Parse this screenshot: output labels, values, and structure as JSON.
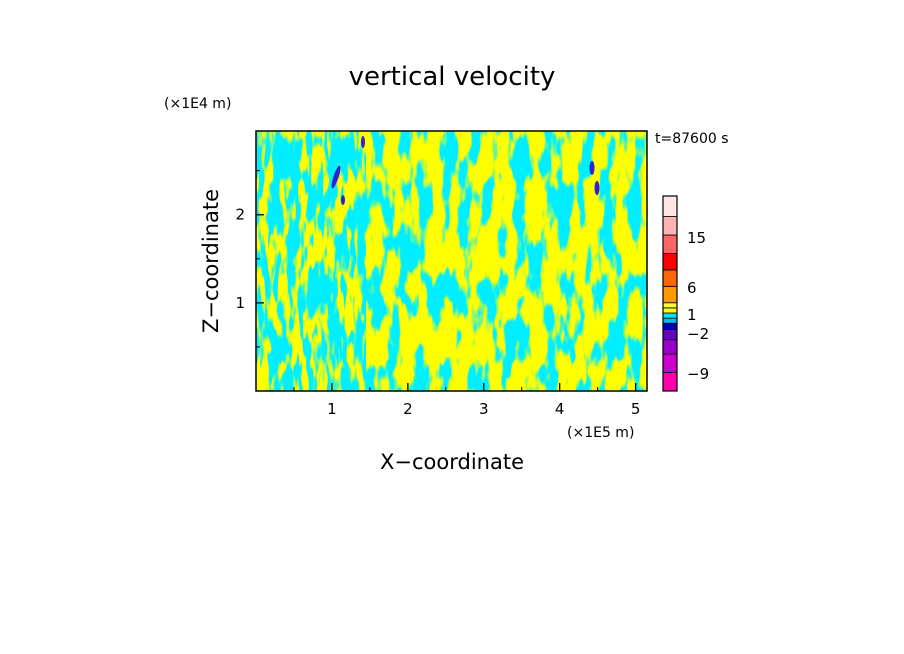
{
  "chart_data": {
    "type": "heatmap",
    "title": "vertical velocity",
    "xlabel": "X−coordinate",
    "ylabel": "Z−coordinate",
    "x_scale_label": "(×1E5 m)",
    "y_scale_label": "(×1E4 m)",
    "time_label": "t=87600 s",
    "xlim": [
      0,
      5.15
    ],
    "ylim": [
      0,
      2.95
    ],
    "x_ticks": [
      "1",
      "2",
      "3",
      "4",
      "5"
    ],
    "x_tick_values": [
      1,
      2,
      3,
      4,
      5
    ],
    "y_ticks": [
      "1",
      "2"
    ],
    "y_tick_values": [
      1,
      2
    ],
    "colorbar": {
      "levels": [
        "15",
        "6",
        "1",
        "−2",
        "−9"
      ],
      "level_values": [
        15,
        6,
        1,
        -2,
        -9
      ],
      "colors": [
        "#ff00aa",
        "#cc00cc",
        "#9900cc",
        "#6600cc",
        "#0000bb",
        "#00b8ff",
        "#00e5ff",
        "#ffff00",
        "#ffff33",
        "#ff9900",
        "#ff6600",
        "#ff0000",
        "#ff6666",
        "#ffb3b3",
        "#ffe6e6"
      ]
    },
    "dominant_colors": {
      "positive": "#ffff00",
      "negative": "#00eeff",
      "strong_negative": "#3322cc"
    }
  }
}
